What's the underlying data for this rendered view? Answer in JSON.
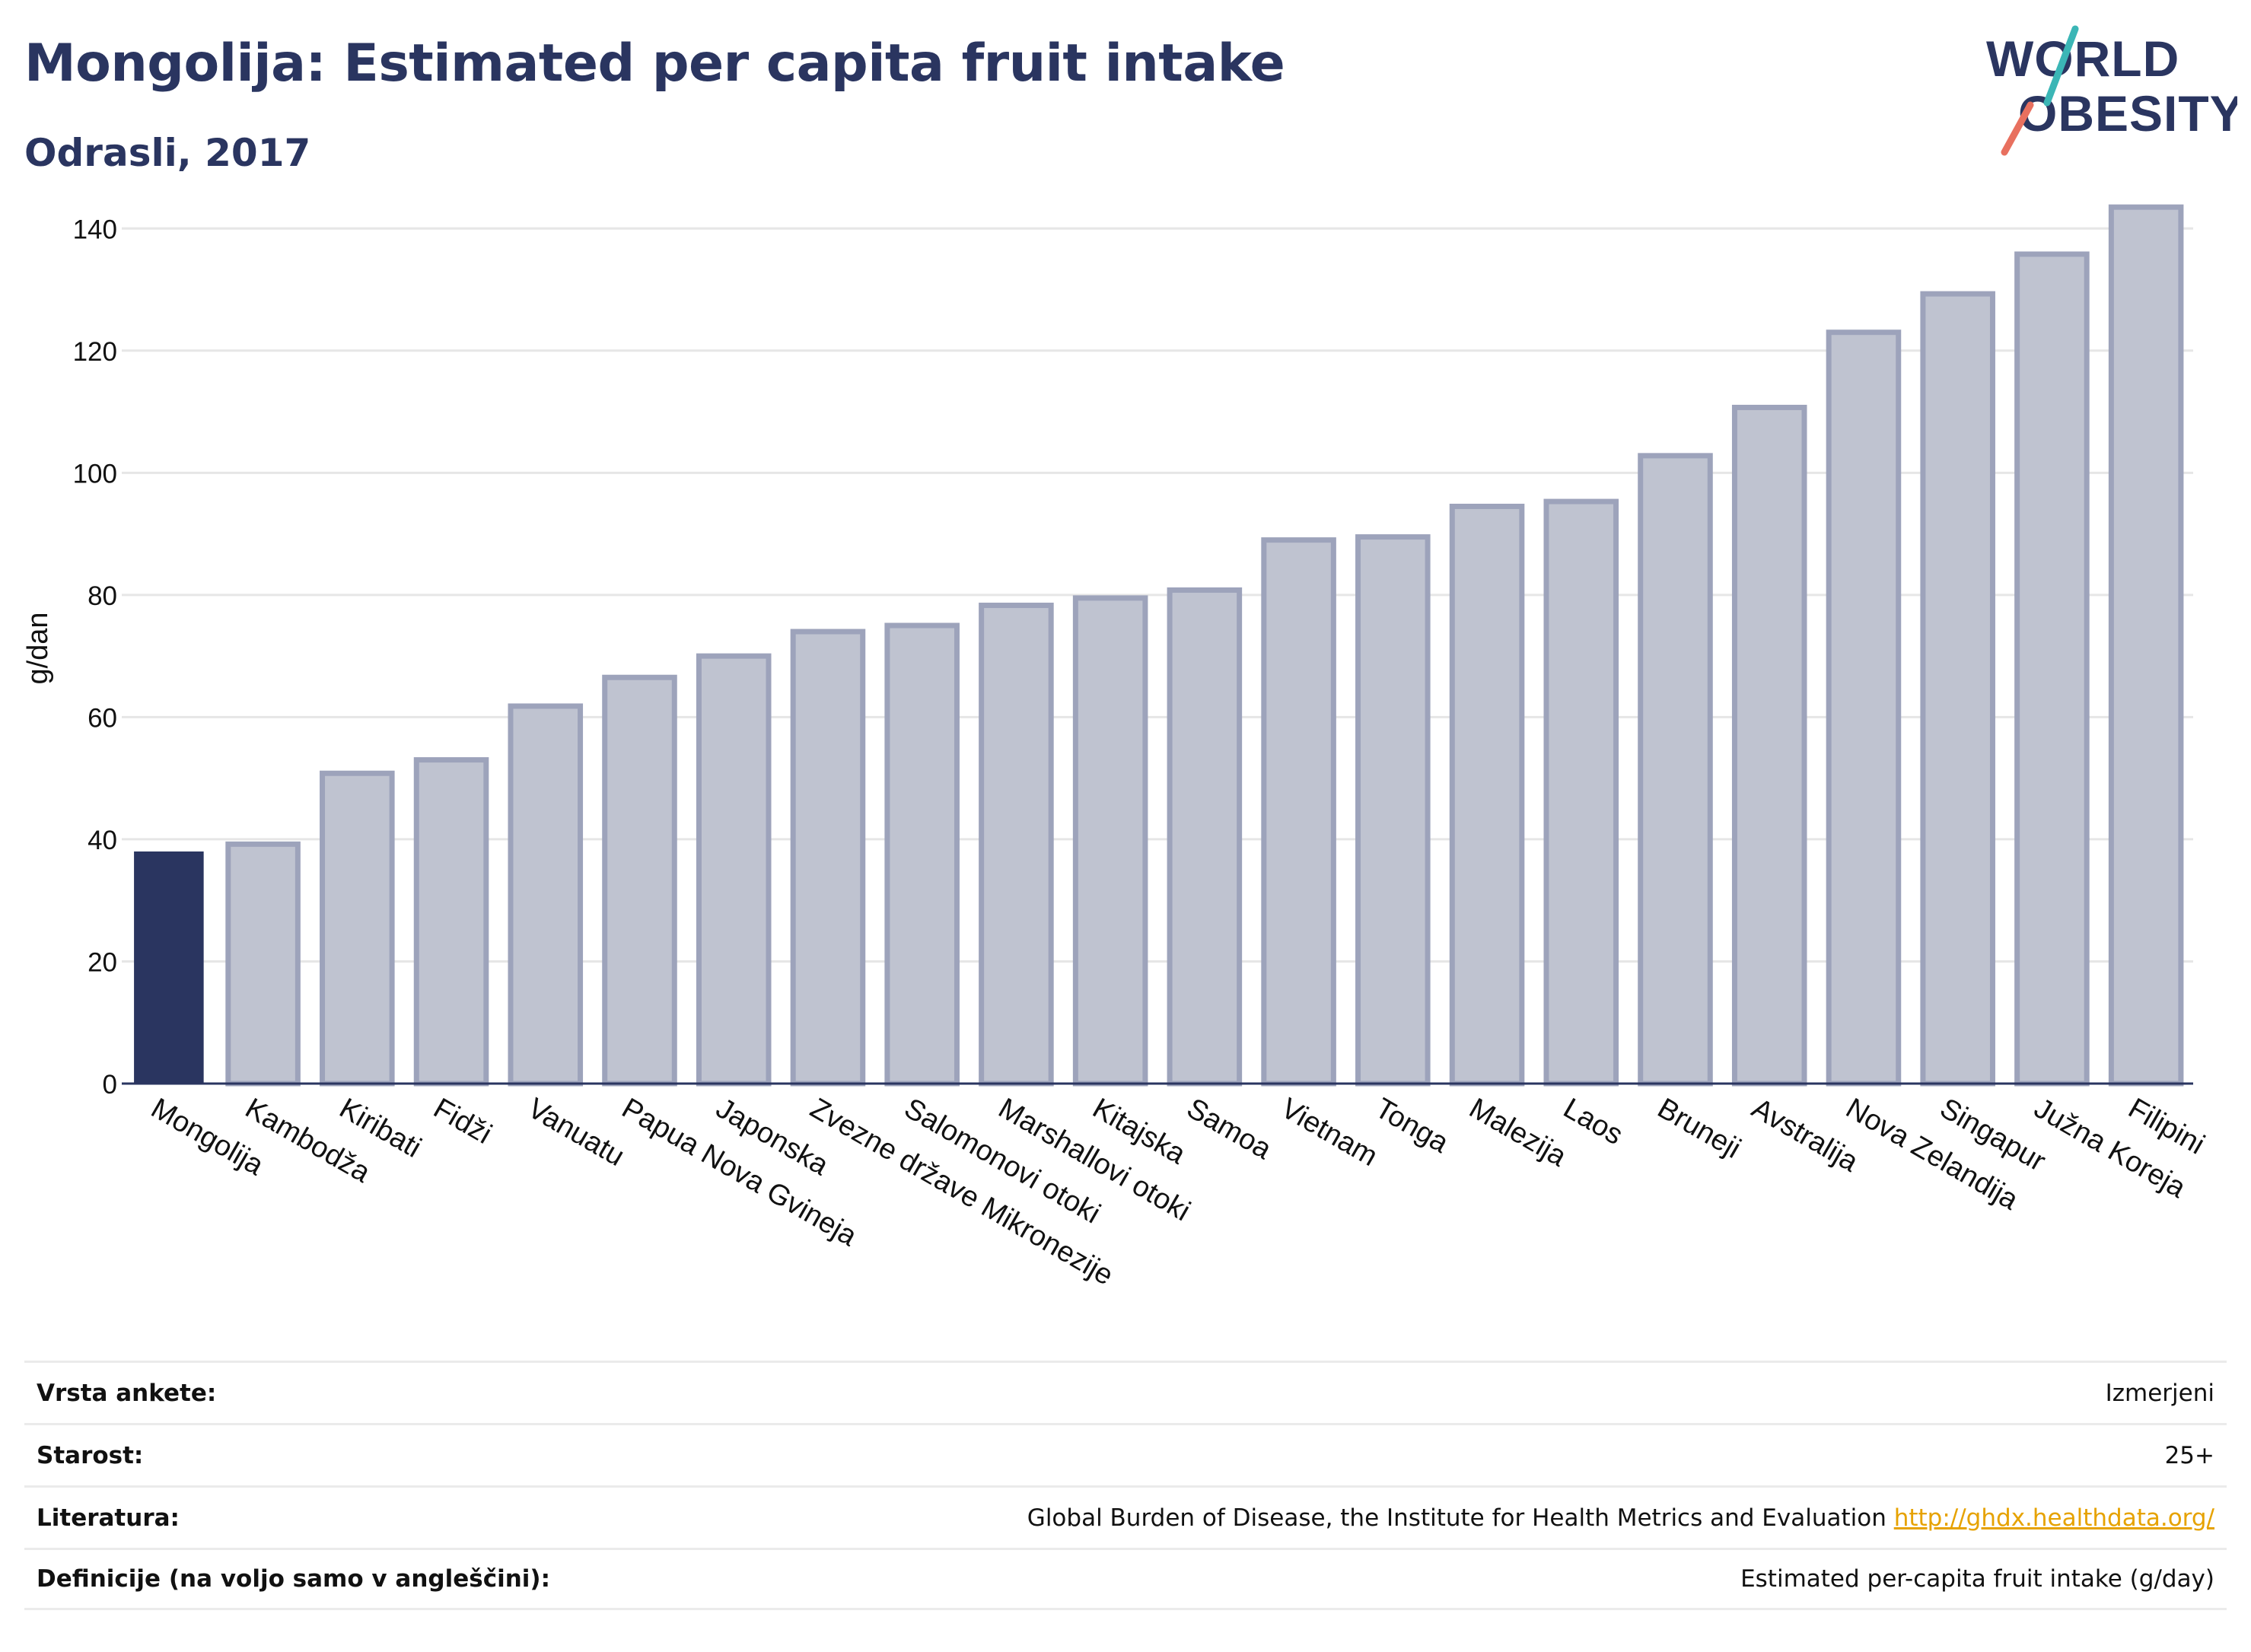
{
  "header": {
    "title": "Mongolija: Estimated per capita fruit intake",
    "subtitle": "Odrasli, 2017"
  },
  "logo": {
    "line1": "WORLD",
    "line2": "OBESITY"
  },
  "colors": {
    "highlight": "#2a3560",
    "bar_fill": "#bfc3d0",
    "bar_stroke": "#9da3bb",
    "grid": "#e6e6e6",
    "logo_text": "#2a3560",
    "logo_teal": "#3bb6b6",
    "logo_coral": "#e8705f",
    "link": "#e6a200"
  },
  "chart_data": {
    "type": "bar",
    "ylabel": "g/dan",
    "ylim": [
      0,
      150
    ],
    "yticks": [
      0,
      20,
      40,
      60,
      80,
      100,
      120,
      140
    ],
    "grid": true,
    "highlight": "Mongolija",
    "categories": [
      "Mongolija",
      "Kambodža",
      "Kiribati",
      "Fidži",
      "Vanuatu",
      "Papua Nova Gvineja",
      "Japonska",
      "Zvezne države Mikronezije",
      "Salomonovi otoki",
      "Marshallovi otoki",
      "Kitajska",
      "Samoa",
      "Vietnam",
      "Tonga",
      "Malezija",
      "Laos",
      "Bruneji",
      "Avstralija",
      "Nova Zelandija",
      "Singapur",
      "Južna Koreja",
      "Filipini"
    ],
    "values": [
      38,
      39.2,
      50.8,
      53,
      61.8,
      66.5,
      70,
      74,
      75,
      78.3,
      79.5,
      80.8,
      89,
      89.5,
      94.5,
      95.3,
      102.8,
      110.7,
      123,
      129.3,
      135.8,
      143.5
    ]
  },
  "meta": {
    "rows": [
      {
        "label": "Vrsta ankete:",
        "value": "Izmerjeni"
      },
      {
        "label": "Starost:",
        "value": "25+"
      },
      {
        "label": "Literatura:",
        "value": "Global Burden of Disease, the Institute for Health Metrics and Evaluation",
        "link": "http://ghdx.healthdata.org/"
      },
      {
        "label": "Definicije (na voljo samo v angleščini):",
        "value": "Estimated per-capita fruit intake (g/day)"
      }
    ]
  }
}
